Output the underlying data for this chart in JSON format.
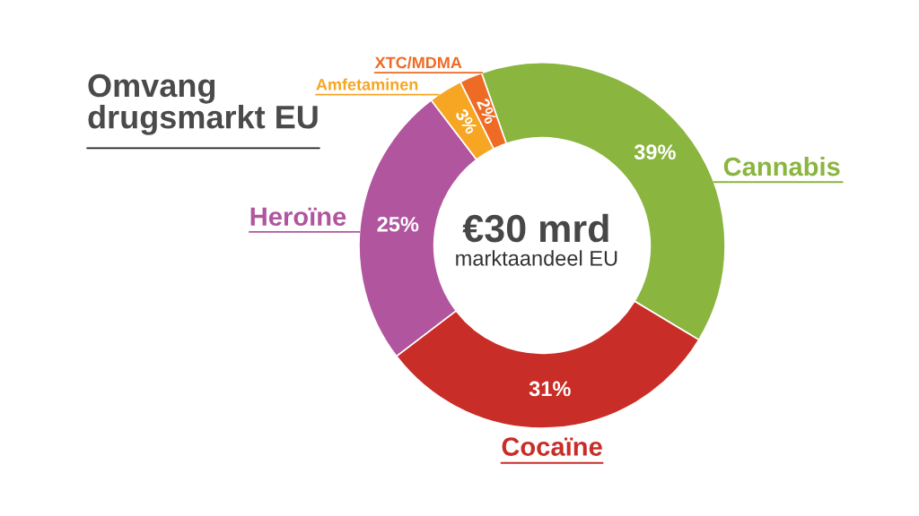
{
  "chart_data": {
    "type": "donut",
    "title": "Omvang\ndrugsmarkt EU",
    "categories": [
      "Cannabis",
      "Cocaïne",
      "Heroïne",
      "Amfetaminen",
      "XTC/MDMA"
    ],
    "values": [
      39,
      31,
      25,
      3,
      2
    ],
    "colors": [
      "#8ab53f",
      "#c92d27",
      "#b0559e",
      "#f6a623",
      "#ee6b25"
    ],
    "value_labels": [
      "39%",
      "31%",
      "25%",
      "3%",
      "2%"
    ],
    "annotations": [
      "€30 mrd",
      "marktaandeel EU"
    ]
  }
}
